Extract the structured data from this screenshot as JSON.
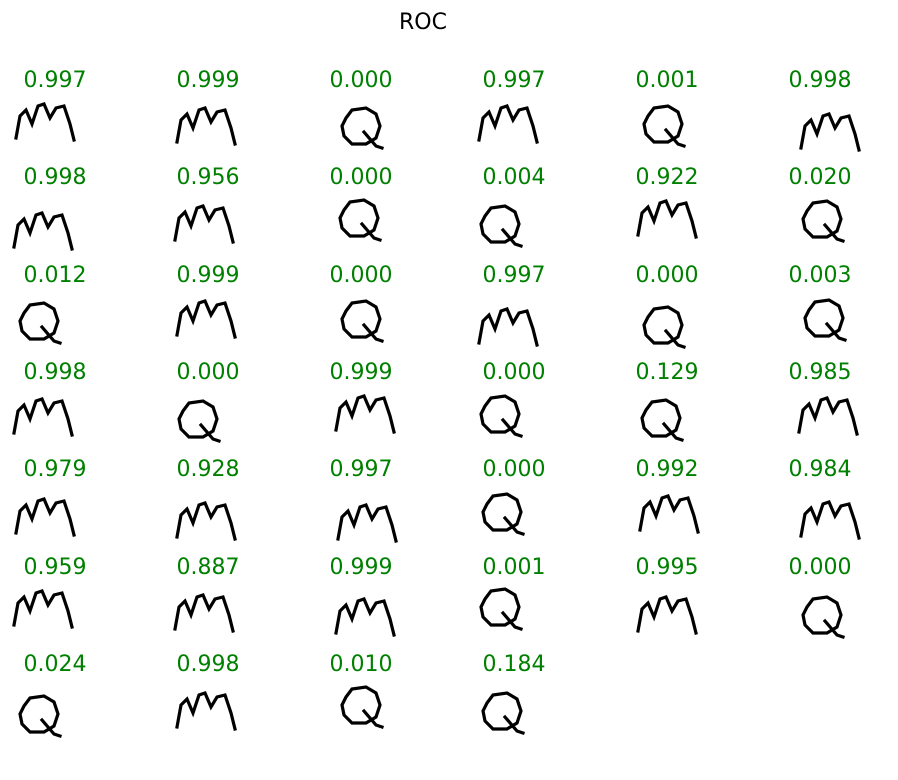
{
  "title": "ROC",
  "score_color": "#008000",
  "items": [
    {
      "score": "0.997",
      "glyph": "m-icon"
    },
    {
      "score": "0.999",
      "glyph": "m-icon"
    },
    {
      "score": "0.000",
      "glyph": "q-icon"
    },
    {
      "score": "0.997",
      "glyph": "m-icon"
    },
    {
      "score": "0.001",
      "glyph": "q-icon"
    },
    {
      "score": "0.998",
      "glyph": "m-icon"
    },
    {
      "score": "0.998",
      "glyph": "m-icon"
    },
    {
      "score": "0.956",
      "glyph": "m-icon"
    },
    {
      "score": "0.000",
      "glyph": "q-icon"
    },
    {
      "score": "0.004",
      "glyph": "q-icon"
    },
    {
      "score": "0.922",
      "glyph": "m-icon"
    },
    {
      "score": "0.020",
      "glyph": "q-icon"
    },
    {
      "score": "0.012",
      "glyph": "q-icon"
    },
    {
      "score": "0.999",
      "glyph": "m-icon"
    },
    {
      "score": "0.000",
      "glyph": "q-icon"
    },
    {
      "score": "0.997",
      "glyph": "m-icon"
    },
    {
      "score": "0.000",
      "glyph": "q-icon"
    },
    {
      "score": "0.003",
      "glyph": "q-icon"
    },
    {
      "score": "0.998",
      "glyph": "m-icon"
    },
    {
      "score": "0.000",
      "glyph": "q-icon"
    },
    {
      "score": "0.999",
      "glyph": "m-icon"
    },
    {
      "score": "0.000",
      "glyph": "q-icon"
    },
    {
      "score": "0.129",
      "glyph": "q-icon"
    },
    {
      "score": "0.985",
      "glyph": "m-icon"
    },
    {
      "score": "0.979",
      "glyph": "m-icon"
    },
    {
      "score": "0.928",
      "glyph": "m-icon"
    },
    {
      "score": "0.997",
      "glyph": "m-icon"
    },
    {
      "score": "0.000",
      "glyph": "q-icon"
    },
    {
      "score": "0.992",
      "glyph": "m-icon"
    },
    {
      "score": "0.984",
      "glyph": "m-icon"
    },
    {
      "score": "0.959",
      "glyph": "m-icon"
    },
    {
      "score": "0.887",
      "glyph": "m-icon"
    },
    {
      "score": "0.999",
      "glyph": "m-icon"
    },
    {
      "score": "0.001",
      "glyph": "q-icon"
    },
    {
      "score": "0.995",
      "glyph": "m-icon"
    },
    {
      "score": "0.000",
      "glyph": "q-icon"
    },
    {
      "score": "0.024",
      "glyph": "q-icon"
    },
    {
      "score": "0.998",
      "glyph": "m-icon"
    },
    {
      "score": "0.010",
      "glyph": "q-icon"
    },
    {
      "score": "0.184",
      "glyph": "q-icon"
    }
  ]
}
